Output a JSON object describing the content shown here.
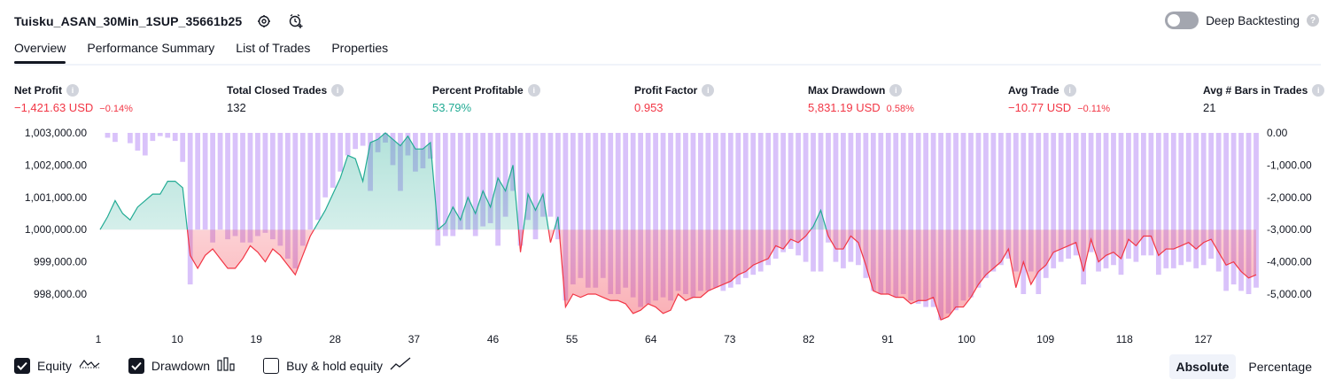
{
  "header": {
    "title": "Tuisku_ASAN_30Min_1SUP_35661b25",
    "deep_backtesting_label": "Deep Backtesting",
    "deep_backtesting_on": false
  },
  "tabs": [
    {
      "label": "Overview",
      "active": true
    },
    {
      "label": "Performance Summary",
      "active": false
    },
    {
      "label": "List of Trades",
      "active": false
    },
    {
      "label": "Properties",
      "active": false
    }
  ],
  "metrics": {
    "net_profit": {
      "label": "Net Profit",
      "value": "−1,421.63 USD",
      "pct": "−0.14%"
    },
    "total_closed_trades": {
      "label": "Total Closed Trades",
      "value": "132"
    },
    "percent_profitable": {
      "label": "Percent Profitable",
      "value": "53.79%"
    },
    "profit_factor": {
      "label": "Profit Factor",
      "value": "0.953"
    },
    "max_drawdown": {
      "label": "Max Drawdown",
      "value": "5,831.19 USD",
      "pct": "0.58%"
    },
    "avg_trade": {
      "label": "Avg Trade",
      "value": "−10.77 USD",
      "pct": "−0.11%"
    },
    "avg_bars": {
      "label": "Avg # Bars in Trades",
      "value": "21"
    }
  },
  "colors": {
    "positive": "#22ab94",
    "negative": "#f23645",
    "drawdown_bar": "#d9c2fa",
    "equity_line_pos": "#22ab94",
    "equity_line_neg": "#f23645"
  },
  "chart_data": {
    "type": "line",
    "x_ticks": [
      1,
      10,
      19,
      28,
      37,
      46,
      55,
      64,
      73,
      82,
      91,
      100,
      109,
      118,
      127
    ],
    "y_left_ticks": [
      "1,003,000.00",
      "1,002,000.00",
      "1,001,000.00",
      "1,000,000.00",
      "999,000.00",
      "998,000.00"
    ],
    "y_left_values": [
      1003000,
      1002000,
      1001000,
      1000000,
      999000,
      998000
    ],
    "y_right_ticks": [
      "0.00",
      "-1,000.00",
      "-2,000.00",
      "-3,000.00",
      "-4,000.00",
      "-5,000.00"
    ],
    "y_right_values": [
      0,
      -1000,
      -2000,
      -3000,
      -4000,
      -5000
    ],
    "baseline": 1000000,
    "series": [
      {
        "name": "Equity",
        "type": "line",
        "values": [
          1000000,
          1000400,
          1000900,
          1000500,
          1000300,
          1000700,
          1000900,
          1001100,
          1001100,
          1001500,
          1001500,
          1001300,
          999200,
          998800,
          999200,
          999400,
          999100,
          998800,
          998800,
          999100,
          999500,
          999300,
          999000,
          999400,
          999200,
          998900,
          998600,
          999200,
          999800,
          1000200,
          1000600,
          1001100,
          1001600,
          1002300,
          1002200,
          1001500,
          1002700,
          1002800,
          1003000,
          1002800,
          1002600,
          1002900,
          1002500,
          1002500,
          1002700,
          1000000,
          1000200,
          1000700,
          1000300,
          1001000,
          1000500,
          1001200,
          1000700,
          1001600,
          1001200,
          1002000,
          999300,
          1001100,
          1000600,
          1001100,
          999600,
          1000400,
          997600,
          998000,
          997900,
          998000,
          998000,
          997900,
          997800,
          997800,
          997700,
          997400,
          997500,
          997700,
          997600,
          997400,
          997500,
          998000,
          997800,
          997900,
          997900,
          998100,
          998200,
          998300,
          998400,
          998600,
          998700,
          998900,
          999000,
          999100,
          999500,
          999400,
          999700,
          999600,
          999800,
          1000100,
          1000600,
          999800,
          999400,
          999400,
          999800,
          999600,
          998900,
          998100,
          998000,
          998000,
          997900,
          997900,
          997700,
          997800,
          997800,
          997900,
          997200,
          997300,
          997600,
          997600,
          997900,
          998300,
          998600,
          998800,
          999000,
          999400,
          998200,
          999000,
          998300,
          998700,
          998900,
          999300,
          999400,
          999500,
          999600,
          998700,
          999700,
          999000,
          999200,
          999300,
          999100,
          999700,
          999500,
          999800,
          999800,
          999200,
          999400,
          999400,
          999500,
          999600,
          999400,
          999600,
          999700,
          999300,
          998900,
          999000,
          998700,
          998500,
          998600
        ],
        "line_color_above": "#22ab94",
        "line_color_below": "#f23645"
      },
      {
        "name": "Drawdown",
        "type": "bar",
        "values": [
          0,
          -150,
          -280,
          0,
          -320,
          -550,
          -700,
          -250,
          -100,
          -150,
          -250,
          -900,
          -4700,
          -3000,
          -3000,
          -3400,
          -3000,
          -3300,
          -3200,
          -3400,
          -3400,
          -3200,
          -3100,
          -3300,
          -3500,
          -3900,
          -4200,
          -3500,
          -3000,
          -2700,
          -2000,
          -1700,
          -1200,
          -700,
          -500,
          -400,
          -1800,
          -600,
          -300,
          -1000,
          -1800,
          -700,
          -1200,
          -1100,
          -800,
          -3500,
          -3200,
          -3200,
          -3000,
          -3000,
          -3200,
          -2900,
          -2800,
          -3500,
          -2600,
          -1800,
          -3500,
          -2700,
          -3300,
          -2600,
          -2600,
          -3300,
          -5200,
          -4700,
          -4500,
          -4800,
          -4800,
          -4500,
          -5000,
          -5000,
          -4800,
          -5100,
          -5400,
          -5300,
          -5200,
          -5100,
          -5200,
          -4900,
          -5000,
          -5100,
          -4900,
          -4900,
          -4800,
          -4900,
          -4800,
          -4700,
          -4500,
          -4400,
          -4300,
          -4100,
          -3900,
          -3700,
          -3600,
          -3800,
          -4000,
          -4300,
          -4300,
          -3400,
          -4000,
          -4200,
          -4000,
          -4100,
          -4500,
          -4900,
          -5000,
          -5000,
          -5100,
          -5000,
          -5200,
          -5300,
          -5400,
          -5400,
          -5800,
          -5600,
          -5500,
          -5200,
          -5100,
          -4800,
          -4500,
          -4300,
          -4100,
          -3900,
          -4300,
          -5000,
          -4300,
          -5000,
          -4500,
          -4200,
          -4000,
          -3900,
          -3800,
          -4700,
          -3700,
          -4300,
          -4200,
          -4100,
          -4400,
          -3900,
          -4000,
          -3800,
          -3800,
          -4400,
          -4200,
          -4200,
          -4100,
          -4000,
          -4200,
          -4100,
          -3900,
          -4300,
          -4900,
          -4700,
          -4900,
          -5000,
          -4800
        ],
        "color": "#d9c2fa"
      }
    ]
  },
  "legend": {
    "equity_label": "Equity",
    "equity_checked": true,
    "drawdown_label": "Drawdown",
    "drawdown_checked": true,
    "buyhold_label": "Buy & hold equity",
    "buyhold_checked": false
  },
  "mode": {
    "absolute_label": "Absolute",
    "percentage_label": "Percentage",
    "selected": "Absolute"
  }
}
